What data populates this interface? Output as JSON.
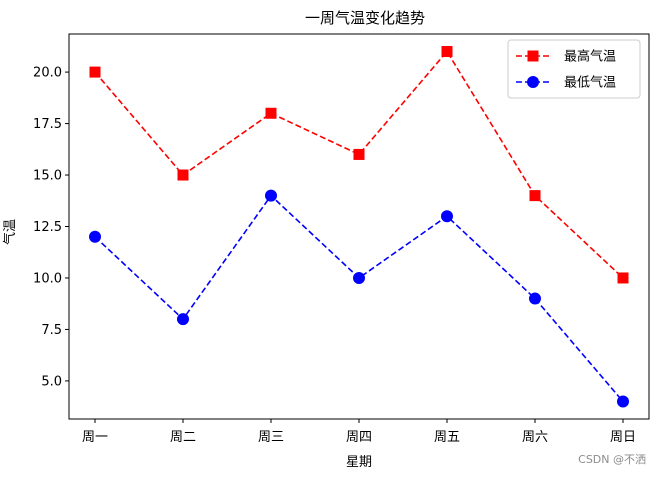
{
  "chart_data": {
    "type": "line",
    "title": "一周气温变化趋势",
    "xlabel": "星期",
    "ylabel": "气温",
    "categories": [
      "周一",
      "周二",
      "周三",
      "周四",
      "周五",
      "周六",
      "周日"
    ],
    "ylim": [
      3.15,
      21.85
    ],
    "yticks": [
      "5.0",
      "7.5",
      "10.0",
      "12.5",
      "15.0",
      "17.5",
      "20.0"
    ],
    "grid": false,
    "legend_position": "top-right",
    "series": [
      {
        "name": "最高气温",
        "values": [
          20,
          15,
          18,
          16,
          21,
          14,
          10
        ],
        "color": "#ff0000",
        "marker": "square",
        "line_style": "dashed"
      },
      {
        "name": "最低气温",
        "values": [
          12,
          8,
          14,
          10,
          13,
          9,
          4
        ],
        "color": "#0000ff",
        "marker": "circle",
        "line_style": "dashed"
      }
    ]
  },
  "watermark": "CSDN @不洒"
}
